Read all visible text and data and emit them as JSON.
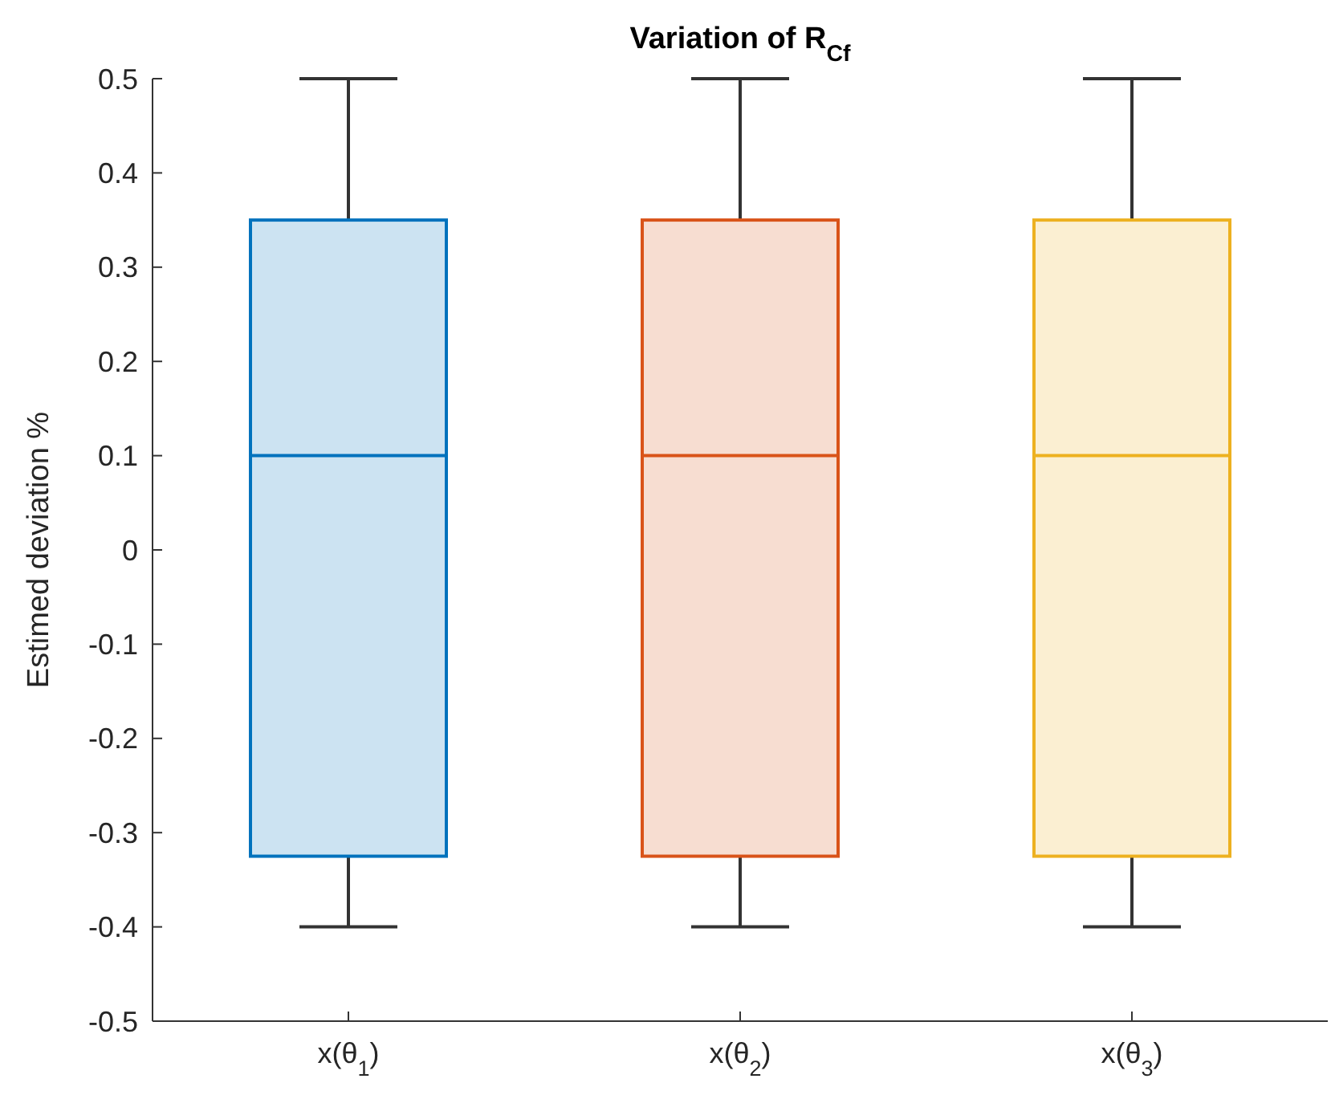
{
  "chart_data": {
    "type": "box",
    "title": "Variation of R$_{Cf}$",
    "ylabel": "Estimed deviation %",
    "categories": [
      "x(θ$_{1}$)",
      "x(θ$_{2}$)",
      "x(θ$_{3}$)"
    ],
    "boxes": [
      {
        "low": -0.4,
        "q1": -0.325,
        "median": 0.1,
        "q3": 0.35,
        "high": 0.5
      },
      {
        "low": -0.4,
        "q1": -0.325,
        "median": 0.1,
        "q3": 0.35,
        "high": 0.5
      },
      {
        "low": -0.4,
        "q1": -0.325,
        "median": 0.1,
        "q3": 0.35,
        "high": 0.5
      }
    ],
    "colors": [
      "#0072bd",
      "#d95319",
      "#edb120"
    ],
    "ylim": [
      -0.5,
      0.5
    ],
    "yticks": [
      -0.5,
      -0.4,
      -0.3,
      -0.2,
      -0.1,
      0,
      0.1,
      0.2,
      0.3,
      0.4,
      0.5
    ],
    "grid": false
  }
}
